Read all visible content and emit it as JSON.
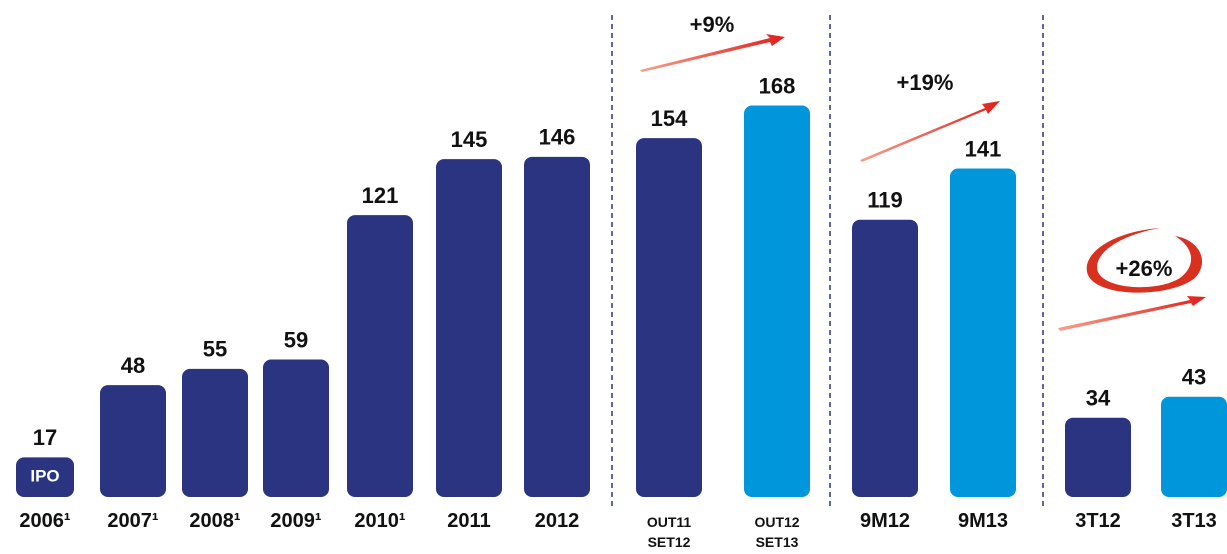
{
  "chart_data": {
    "type": "bar",
    "categories": [
      "2006¹",
      "2007¹",
      "2008¹",
      "2009¹",
      "2010¹",
      "2011",
      "2012",
      "OUT11\nSET12",
      "OUT12\nSET13",
      "9M12",
      "9M13",
      "3T12",
      "3T13"
    ],
    "values": [
      17,
      48,
      55,
      59,
      121,
      145,
      146,
      154,
      168,
      119,
      141,
      34,
      43
    ],
    "colors": [
      "#2b3480",
      "#2b3480",
      "#2b3480",
      "#2b3480",
      "#2b3480",
      "#2b3480",
      "#2b3480",
      "#2b3480",
      "#0096dc",
      "#2b3480",
      "#0096dc",
      "#2b3480",
      "#0096dc"
    ],
    "annotations": [
      "IPO",
      "+9%",
      "+19%",
      "+26%"
    ]
  }
}
